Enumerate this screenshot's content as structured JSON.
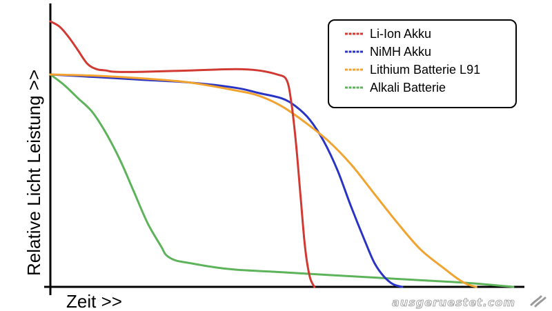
{
  "chart_data": {
    "type": "line",
    "xlabel": "Zeit >>",
    "ylabel": "Relative Licht Leistung >>",
    "xlim": [
      0,
      100
    ],
    "ylim": [
      0,
      100
    ],
    "grid": false,
    "legend_position": "top-right",
    "series": [
      {
        "name": "Li-Ion Akku",
        "color": "#d03a32",
        "x": [
          0,
          2,
          4,
          6,
          8,
          10,
          12,
          14,
          20,
          30,
          40,
          45,
          49,
          51,
          52,
          53,
          54,
          55,
          56,
          57
        ],
        "y": [
          100,
          98,
          94,
          89,
          84,
          82,
          81.5,
          81,
          81,
          81.5,
          82,
          81.5,
          80,
          78,
          70,
          55,
          35,
          15,
          4,
          0
        ]
      },
      {
        "name": "NiMH Akku",
        "color": "#2a34c4",
        "x": [
          0,
          10,
          20,
          30,
          40,
          45,
          50,
          53,
          56,
          59,
          62,
          65,
          68,
          70,
          72,
          74,
          76
        ],
        "y": [
          80,
          79,
          78,
          77,
          75,
          73,
          71,
          68,
          63,
          55,
          44,
          30,
          17,
          9,
          4,
          1,
          0
        ]
      },
      {
        "name": "Lithium Batterie L91",
        "color": "#f2a22f",
        "x": [
          0,
          10,
          20,
          30,
          40,
          45,
          50,
          55,
          60,
          65,
          70,
          75,
          80,
          85,
          88,
          90,
          92
        ],
        "y": [
          80,
          79.5,
          78.5,
          77,
          74,
          72,
          68,
          62,
          55,
          46,
          35,
          24,
          14,
          7,
          3,
          1,
          0
        ]
      },
      {
        "name": "Alkali Batterie",
        "color": "#5db35a",
        "x": [
          0,
          3,
          6,
          9,
          12,
          15,
          18,
          21,
          24,
          25,
          27,
          30,
          35,
          40,
          50,
          60,
          70,
          80,
          90,
          100
        ],
        "y": [
          80,
          76,
          71,
          66,
          58,
          48,
          36,
          24,
          15,
          12,
          10,
          9,
          7.5,
          6.5,
          5.5,
          4.5,
          3.5,
          2.5,
          1.5,
          0
        ]
      }
    ]
  },
  "watermark": {
    "text": "ausgeruestet.com"
  }
}
